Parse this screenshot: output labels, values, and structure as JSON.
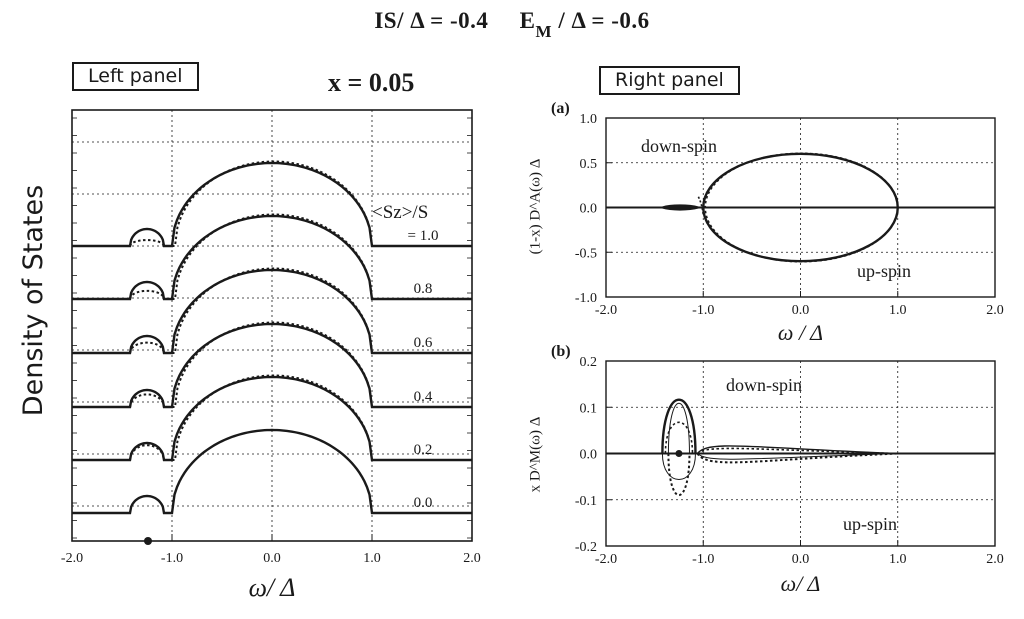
{
  "header": {
    "is_label": "IS/ Δ = -0.4",
    "em_prefix": "E",
    "em_sub": "M",
    "em_suffix": " / Δ = -0.6"
  },
  "left_panel": {
    "label": "Left panel",
    "x_title": "x = 0.05",
    "y_title": "Density of  States",
    "x_axis_title": "ω/ Δ"
  },
  "right_panel": {
    "label": "Right panel"
  },
  "chart_data": [
    {
      "id": "left",
      "type": "line",
      "title": "x = 0.05",
      "xlabel": "ω/ Δ",
      "ylabel": "Density of  States",
      "xlim": [
        -2.0,
        2.0
      ],
      "x_ticks": [
        "-2.0",
        "-1.0",
        "0.0",
        "1.0",
        "2.0"
      ],
      "legend_title": "<Sz>/S",
      "curve_labels": [
        "= 1.0",
        "0.8",
        "0.6",
        "0.4",
        "0.2",
        "0.0"
      ],
      "sz_values": [
        1.0,
        0.8,
        0.6,
        0.4,
        0.2,
        0.0
      ],
      "main_band": [
        -1.0,
        1.0
      ],
      "impurity_band": [
        -1.42,
        -1.08
      ],
      "marker_x": -1.24,
      "series": [
        {
          "name": "solid",
          "style": "solid"
        },
        {
          "name": "dotted",
          "style": "dotted"
        }
      ]
    },
    {
      "id": "a",
      "panel_label": "(a)",
      "type": "line",
      "xlabel": "ω / Δ",
      "ylabel": "(1-x) D^A(ω) Δ",
      "xlim": [
        -2.0,
        2.0
      ],
      "ylim": [
        -1.0,
        1.0
      ],
      "x_ticks": [
        "-2.0",
        "-1.0",
        "0.0",
        "1.0",
        "2.0"
      ],
      "y_ticks": [
        "1.0",
        "0.5",
        "0.0",
        "-0.5",
        "-1.0"
      ],
      "annotations": [
        "down-spin",
        "up-spin"
      ],
      "ellipse": {
        "center": 0.0,
        "half_width": 1.0,
        "height": 0.6
      }
    },
    {
      "id": "b",
      "panel_label": "(b)",
      "type": "line",
      "xlabel": "ω/ Δ",
      "ylabel": "x D^M(ω) Δ",
      "xlim": [
        -2.0,
        2.0
      ],
      "ylim": [
        -0.2,
        0.2
      ],
      "x_ticks": [
        "-2.0",
        "-1.0",
        "0.0",
        "1.0",
        "2.0"
      ],
      "y_ticks": [
        "0.2",
        "0.1",
        "0.0",
        "-0.1",
        "-0.2"
      ],
      "annotations": [
        "down-spin",
        "up-spin"
      ],
      "loop_center": -1.25,
      "loop_peak": 0.125,
      "loop_peak_thin": 0.115,
      "loop_trough_dotted": -0.09,
      "loop_trough_thin": -0.065,
      "marker_x": -1.25
    }
  ]
}
